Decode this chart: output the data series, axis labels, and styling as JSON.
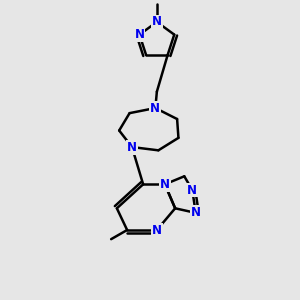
{
  "bg_color": "#e6e6e6",
  "bond_color": "#000000",
  "N_color": "#0000ee",
  "line_width": 1.8,
  "font_size": 8.5,
  "figsize": [
    3.0,
    3.0
  ],
  "dpi": 100,
  "xlim": [
    0,
    10
  ],
  "ylim": [
    0,
    13
  ]
}
